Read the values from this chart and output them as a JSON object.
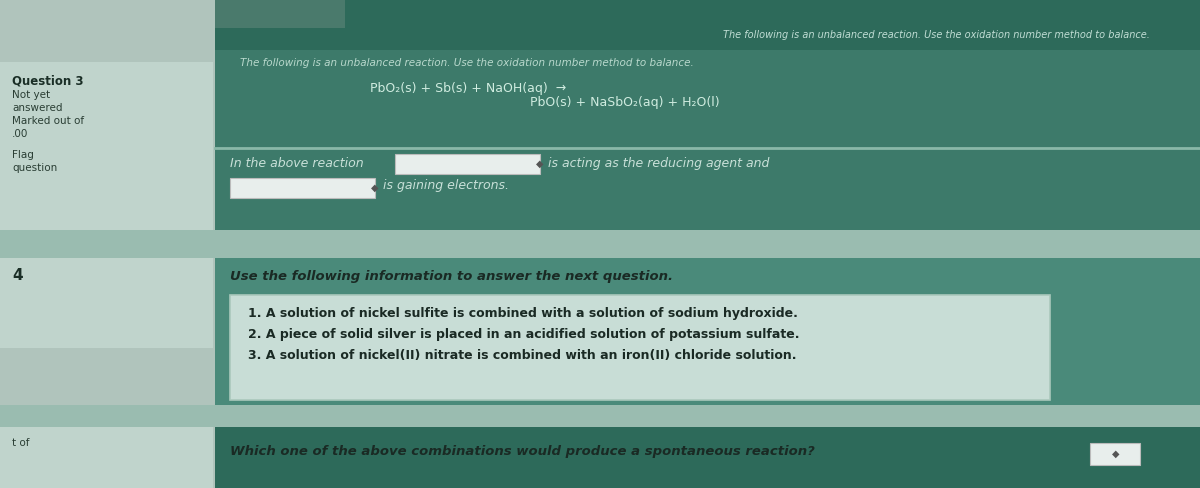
{
  "bg_outer": "#b0c4bc",
  "bg_main": "#3d7a6a",
  "bg_top_strip": "#2d6a5a",
  "bg_separator": "#8ab8a8",
  "bg_lower": "#4a8a7a",
  "bg_bottom_strip": "#2d6a5a",
  "left_panel_bg": "#c0d4cc",
  "items_box_bg": "#c8ddd6",
  "items_box_border": "#aac8bc",
  "text_dark": "#1a2e26",
  "text_medium": "#2a3e34",
  "text_light": "#c8e8dc",
  "white": "#ffffff",
  "dropdown_border": "#bbbbbb",
  "left_labels": [
    "Question 3",
    "Not yet",
    "answered",
    "Marked out of",
    ".00",
    "Flag",
    "question"
  ],
  "top_instruction": "The following is an unbalanced reaction. Use the oxidation number method to balance.",
  "reaction_left": "PbO₂(s) + Sb(s) + NaOH(aq)",
  "reaction_right": "PbO(s) + NaSbO₂(aq) + H₂O(l)",
  "in_above_text": "In the above reaction",
  "is_acting_text": "is acting as the reducing agent and",
  "is_gaining_text": "is gaining electrons.",
  "use_following": "Use the following information to answer the next question.",
  "item1": "1. A solution of nickel sulfite is combined with a solution of sodium hydroxide.",
  "item2": "2. A piece of solid silver is placed in an acidified solution of potassium sulfate.",
  "item3": "3. A solution of nickel(II) nitrate is combined with an iron(II) chloride solution.",
  "which_one": "Which one of the above combinations would produce a spontaneous reaction?",
  "q_number": "4",
  "t_of": "t of",
  "figsize": [
    12.0,
    4.88
  ],
  "dpi": 100
}
